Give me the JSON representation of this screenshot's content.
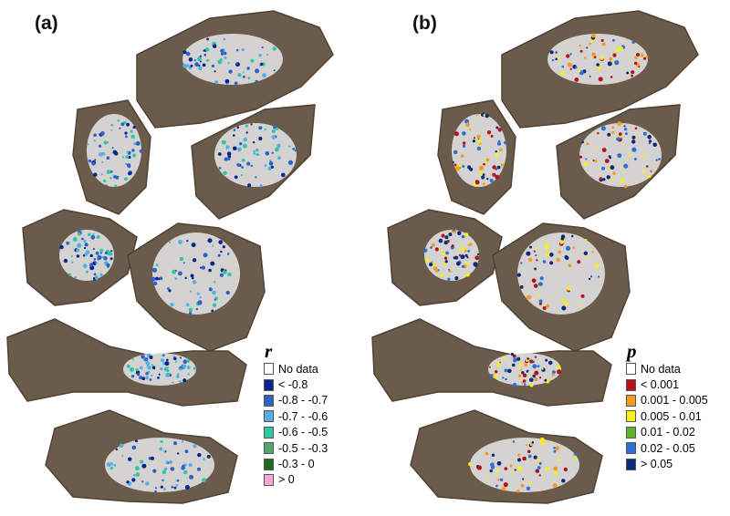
{
  "panels": [
    {
      "label": "(a)",
      "legend": {
        "title": "r",
        "items": [
          {
            "label": "No data",
            "color": "#ffffff"
          },
          {
            "label": "< -0.8",
            "color": "#08268f"
          },
          {
            "label": "-0.8 - -0.7",
            "color": "#2e62c8"
          },
          {
            "label": "-0.7 - -0.6",
            "color": "#55aee8"
          },
          {
            "label": "-0.6 - -0.5",
            "color": "#2ec9a4"
          },
          {
            "label": "-0.5 - -0.3",
            "color": "#4fa86a"
          },
          {
            "label": "-0.3 - 0",
            "color": "#1f6a1f"
          },
          {
            "label": "> 0",
            "color": "#f5a8d2"
          }
        ]
      }
    },
    {
      "label": "(b)",
      "legend": {
        "title": "p",
        "items": [
          {
            "label": "No data",
            "color": "#ffffff"
          },
          {
            "label": "< 0.001",
            "color": "#b5121b"
          },
          {
            "label": "0.001 - 0.005",
            "color": "#f59a1c"
          },
          {
            "label": "0.005 - 0.01",
            "color": "#f7ee1e"
          },
          {
            "label": "0.01 - 0.02",
            "color": "#5fb32b"
          },
          {
            "label": "0.02 - 0.05",
            "color": "#2e6ed6"
          },
          {
            "label": "> 0.05",
            "color": "#0c2a7a"
          }
        ]
      }
    }
  ],
  "map_colors": {
    "terrain": "#6b5b4a",
    "terrain_dark": "#4f4236",
    "ice": "#e8e8ea",
    "water": "#ffffff"
  },
  "panel_a_cluster_colors": [
    "#2e62c8",
    "#55aee8",
    "#2ec9a4",
    "#08268f"
  ],
  "panel_b_cluster_colors": [
    "#b5121b",
    "#f59a1c",
    "#f7ee1e",
    "#2e6ed6",
    "#0c2a7a"
  ]
}
